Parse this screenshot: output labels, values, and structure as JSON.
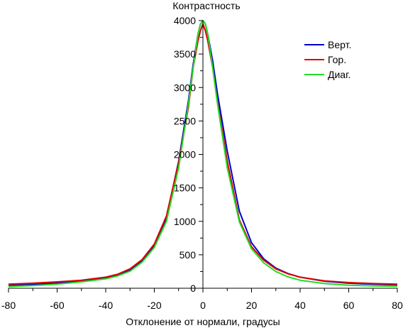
{
  "chart_data": {
    "type": "line",
    "title": "",
    "xlabel": "Отклонение от нормали, градусы",
    "ylabel": "Контрастность",
    "xlim": [
      -80,
      80
    ],
    "ylim": [
      0,
      4000
    ],
    "x_ticks": [
      -80,
      -60,
      -40,
      -20,
      0,
      20,
      40,
      60,
      80
    ],
    "y_ticks": [
      0,
      500,
      1000,
      1500,
      2000,
      2500,
      3000,
      3500,
      4000
    ],
    "x_tick_labels": [
      "-80",
      "-60",
      "-40",
      "-20",
      "0",
      "20",
      "40",
      "60",
      "80"
    ],
    "y_tick_labels": [
      "0",
      "500",
      "1000",
      "1500",
      "2000",
      "2500",
      "3000",
      "3500",
      "4000"
    ],
    "legend_position": "top-right",
    "grid": false,
    "series": [
      {
        "name": "Верт.",
        "color": "#0000cc",
        "x": [
          -80,
          -70,
          -60,
          -50,
          -40,
          -35,
          -30,
          -25,
          -20,
          -15,
          -10,
          -6,
          -4,
          -2,
          -1,
          0,
          1,
          2,
          4,
          6,
          10,
          15,
          20,
          25,
          30,
          35,
          40,
          50,
          60,
          70,
          80
        ],
        "y": [
          40,
          55,
          75,
          105,
          150,
          195,
          270,
          410,
          640,
          1050,
          1900,
          2800,
          3350,
          3800,
          3950,
          4000,
          3950,
          3800,
          3400,
          2900,
          2050,
          1150,
          680,
          440,
          300,
          220,
          165,
          105,
          75,
          60,
          50
        ]
      },
      {
        "name": "Гор.",
        "color": "#dd0000",
        "x": [
          -80,
          -70,
          -60,
          -50,
          -40,
          -35,
          -30,
          -25,
          -20,
          -15,
          -10,
          -6,
          -4,
          -2,
          -1,
          0,
          1,
          2,
          4,
          6,
          10,
          15,
          20,
          25,
          30,
          35,
          40,
          50,
          60,
          70,
          80
        ],
        "y": [
          60,
          75,
          95,
          120,
          165,
          210,
          290,
          430,
          660,
          1080,
          1880,
          2700,
          3300,
          3700,
          3850,
          3950,
          3850,
          3700,
          3300,
          2780,
          1900,
          1020,
          620,
          420,
          290,
          215,
          165,
          110,
          85,
          70,
          60
        ]
      },
      {
        "name": "Диаг.",
        "color": "#22dd22",
        "x": [
          -80,
          -70,
          -60,
          -50,
          -40,
          -35,
          -30,
          -25,
          -20,
          -15,
          -10,
          -6,
          -4,
          -2,
          -1,
          0,
          1,
          2,
          4,
          6,
          10,
          15,
          20,
          25,
          30,
          35,
          40,
          50,
          60,
          70,
          80
        ],
        "y": [
          25,
          40,
          60,
          95,
          140,
          185,
          255,
          390,
          610,
          1000,
          1800,
          2750,
          3300,
          3800,
          3950,
          4000,
          3950,
          3800,
          3300,
          2750,
          1800,
          990,
          590,
          380,
          250,
          170,
          120,
          70,
          45,
          35,
          30
        ]
      }
    ]
  }
}
